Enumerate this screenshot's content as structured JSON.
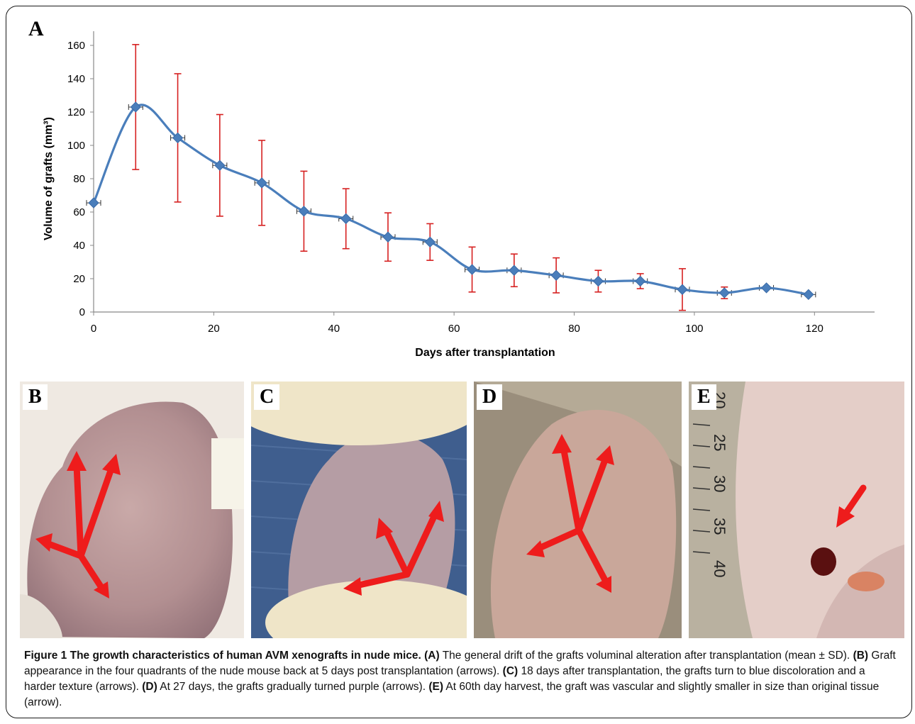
{
  "panel_a_label": "A",
  "chart_data": {
    "type": "line",
    "xlabel": "Days after transplantation",
    "ylabel": "Volume of grafts (mm³)",
    "xlim": [
      0,
      130
    ],
    "ylim": [
      0,
      160
    ],
    "x_ticks": [
      0,
      20,
      40,
      60,
      80,
      100,
      120
    ],
    "y_ticks": [
      0,
      20,
      40,
      60,
      80,
      100,
      120,
      140,
      160
    ],
    "grid": false,
    "series": [
      {
        "color": "#4a7ebb",
        "error_bar_color": "#d62020",
        "x": [
          0,
          7,
          14,
          21,
          28,
          35,
          42,
          49,
          56,
          63,
          70,
          77,
          84,
          91,
          98,
          105,
          112,
          119
        ],
        "y": [
          65.5,
          123,
          104.5,
          88,
          77.5,
          60.5,
          56,
          45,
          42,
          25.5,
          25,
          22,
          18.5,
          18.5,
          13.5,
          11.5,
          14.5,
          10.5
        ],
        "err": [
          0,
          37.5,
          38.5,
          30.5,
          25.5,
          24,
          18,
          14.5,
          11,
          13.5,
          9.8,
          10.5,
          6.5,
          4.5,
          12.5,
          3.5,
          0,
          0
        ]
      }
    ]
  },
  "photos": [
    {
      "label": "B",
      "alt": "mouse back, 5 days post transplantation"
    },
    {
      "label": "C",
      "alt": "mouse back, 18 days after transplantation"
    },
    {
      "label": "D",
      "alt": "mouse back, 27 days"
    },
    {
      "label": "E",
      "alt": "60th day harvest with ruler"
    }
  ],
  "ruler_numbers": [
    "20",
    "25",
    "30",
    "35",
    "40"
  ],
  "caption": {
    "title": "Figure 1 The growth characteristics of human AVM xenografts in nude mice.",
    "a_tag": "(A)",
    "a_text": " The general drift of the grafts voluminal alteration after transplantation (mean ± SD). ",
    "b_tag": "(B)",
    "b_text": " Graft appearance in the four quadrants of the nude mouse back at 5 days post transplantation (arrows). ",
    "c_tag": "(C)",
    "c_text": " 18 days after transplantation, the grafts turn to blue discoloration and a harder texture (arrows). ",
    "d_tag": "(D)",
    "d_text": " At 27 days, the grafts gradually turned purple (arrows). ",
    "e_tag": "(E)",
    "e_text": " At 60th day harvest, the graft was vascular and slightly smaller in size than original tissue (arrow)."
  }
}
